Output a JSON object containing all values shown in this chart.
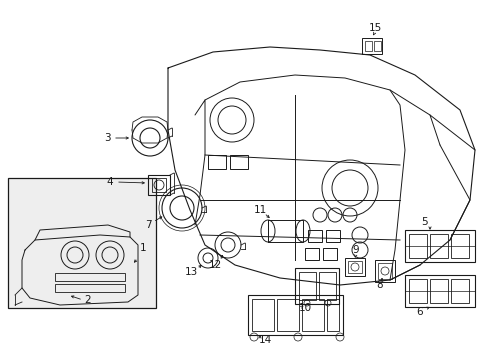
{
  "bg_color": "#ffffff",
  "line_color": "#1a1a1a",
  "fig_width": 4.89,
  "fig_height": 3.6,
  "dpi": 100,
  "gray_fill": "#d8d8d8",
  "light_gray": "#eeeeee"
}
